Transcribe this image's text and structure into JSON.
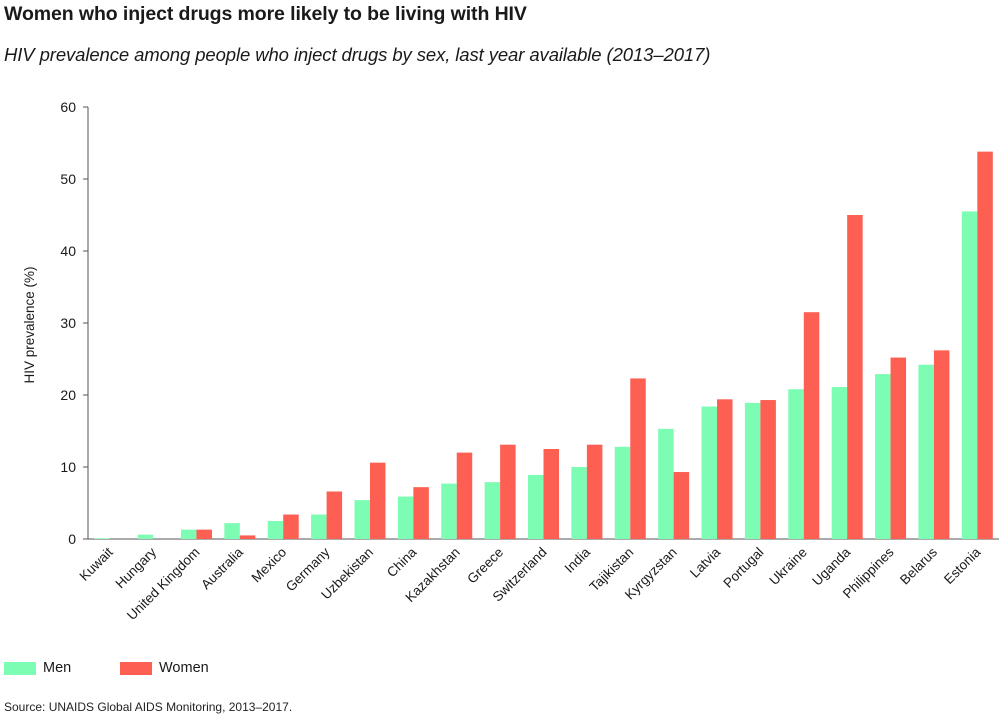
{
  "title": "Women who inject drugs more likely to be living with HIV",
  "subtitle": "HIV prevalence among people who inject drugs by sex, last year available (2013–2017)",
  "source": "Source: UNAIDS Global AIDS Monitoring, 2013–2017.",
  "colors": {
    "men": "#7dfcb3",
    "women": "#fd5f53",
    "axis": "#555555"
  },
  "legend": [
    {
      "name": "Men",
      "color": "#7dfcb3"
    },
    {
      "name": "Women",
      "color": "#fd5f53"
    }
  ],
  "chart_data": {
    "type": "bar",
    "title": "Women who inject drugs more likely to be living with HIV",
    "subtitle": "HIV prevalence among people who inject drugs by sex, last year available (2013–2017)",
    "xlabel": "",
    "ylabel": "HIV prevalence (%)",
    "ylim": [
      0,
      60
    ],
    "yticks": [
      0,
      10,
      20,
      30,
      40,
      50,
      60
    ],
    "grid": false,
    "legend_position": "bottom-left",
    "categories": [
      "Kuwait",
      "Hungary",
      "United Kingdom",
      "Australia",
      "Mexico",
      "Germany",
      "Uzbekistan",
      "China",
      "Kazakhstan",
      "Greece",
      "Switzerland",
      "India",
      "Tajikistan",
      "Kyrgyzstan",
      "Latvia",
      "Portugal",
      "Ukraine",
      "Uganda",
      "Philippines",
      "Belarus",
      "Estonia"
    ],
    "series": [
      {
        "name": "Men",
        "values": [
          0.1,
          0.6,
          1.3,
          2.2,
          2.5,
          3.4,
          5.4,
          5.9,
          7.7,
          7.9,
          8.9,
          10.0,
          12.8,
          15.3,
          18.4,
          18.9,
          20.8,
          21.1,
          22.9,
          24.2,
          45.5
        ]
      },
      {
        "name": "Women",
        "values": [
          0.0,
          0.0,
          1.3,
          0.5,
          3.4,
          6.6,
          10.6,
          7.2,
          12.0,
          13.1,
          12.5,
          13.1,
          22.3,
          9.3,
          19.4,
          19.3,
          31.5,
          45.0,
          25.2,
          26.2,
          53.8
        ]
      }
    ]
  }
}
